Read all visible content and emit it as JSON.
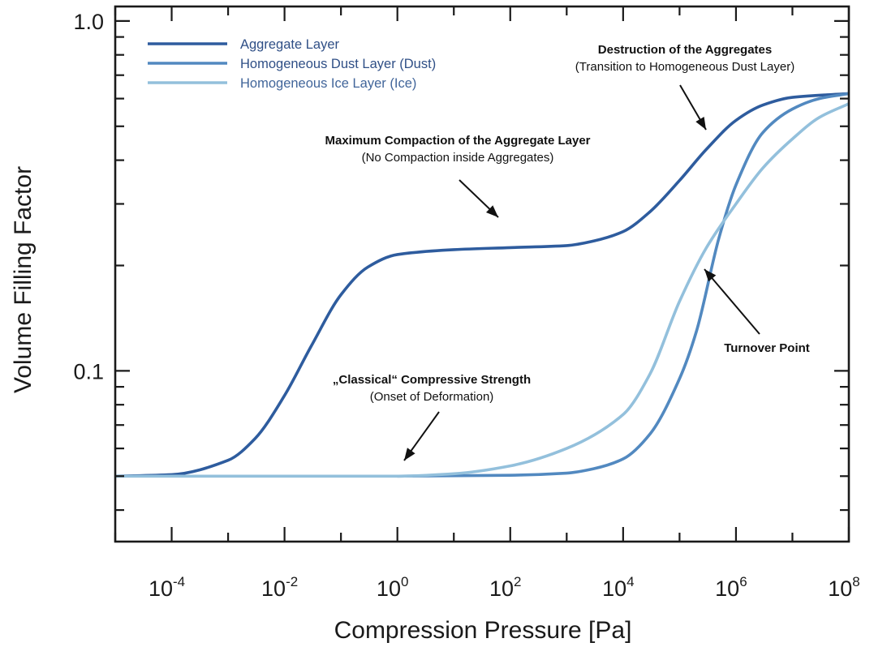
{
  "chart_data": {
    "type": "line",
    "xlabel": "Compression Pressure [Pa]",
    "ylabel": "Volume Filling Factor",
    "xscale": "log",
    "yscale": "log",
    "xlim": [
      1e-05,
      100000000.0
    ],
    "ylim": [
      0.0325,
      1.1
    ],
    "grid": false,
    "legend_position": "top-left",
    "x_tick_labels": [
      {
        "value": 0.0001,
        "base": "10",
        "exp": "-4"
      },
      {
        "value": 0.01,
        "base": "10",
        "exp": "-2"
      },
      {
        "value": 1.0,
        "base": "10",
        "exp": "0"
      },
      {
        "value": 100.0,
        "base": "10",
        "exp": "2"
      },
      {
        "value": 10000.0,
        "base": "10",
        "exp": "4"
      },
      {
        "value": 1000000.0,
        "base": "10",
        "exp": "6"
      },
      {
        "value": 100000000.0,
        "base": "10",
        "exp": "8"
      }
    ],
    "y_tick_labels": [
      {
        "value": 1.0,
        "label": "1.0"
      },
      {
        "value": 0.1,
        "label": "0.1"
      }
    ],
    "series": [
      {
        "name": "Aggregate Layer",
        "color": "#2e5c9e",
        "points": [
          [
            1e-05,
            0.05
          ],
          [
            0.0001,
            0.0505
          ],
          [
            0.001,
            0.0555
          ],
          [
            0.003,
            0.064
          ],
          [
            0.01,
            0.085
          ],
          [
            0.03,
            0.118
          ],
          [
            0.1,
            0.165
          ],
          [
            0.3,
            0.198
          ],
          [
            1.0,
            0.215
          ],
          [
            10.0,
            0.222
          ],
          [
            100.0,
            0.225
          ],
          [
            1000.0,
            0.228
          ],
          [
            3000.0,
            0.235
          ],
          [
            10000.0,
            0.25
          ],
          [
            30000.0,
            0.285
          ],
          [
            100000.0,
            0.35
          ],
          [
            300000.0,
            0.43
          ],
          [
            1000000.0,
            0.52
          ],
          [
            3000000.0,
            0.575
          ],
          [
            10000000.0,
            0.605
          ],
          [
            100000000.0,
            0.62
          ]
        ]
      },
      {
        "name": "Homogeneous Dust Layer (Dust)",
        "color": "#5289c0",
        "points": [
          [
            1.0,
            0.05
          ],
          [
            100.0,
            0.0503
          ],
          [
            1000.0,
            0.051
          ],
          [
            3000.0,
            0.0525
          ],
          [
            10000.0,
            0.056
          ],
          [
            30000.0,
            0.066
          ],
          [
            100000.0,
            0.095
          ],
          [
            200000.0,
            0.13
          ],
          [
            500000.0,
            0.24
          ],
          [
            1000000.0,
            0.34
          ],
          [
            3000000.0,
            0.48
          ],
          [
            10000000.0,
            0.56
          ],
          [
            30000000.0,
            0.6
          ],
          [
            100000000.0,
            0.62
          ]
        ]
      },
      {
        "name": "Homogeneous Ice Layer (Ice)",
        "color": "#93c0dc",
        "points": [
          [
            1e-05,
            0.05
          ],
          [
            1.0,
            0.05
          ],
          [
            10.0,
            0.0508
          ],
          [
            100.0,
            0.0535
          ],
          [
            1000.0,
            0.06
          ],
          [
            10000.0,
            0.075
          ],
          [
            30000.0,
            0.098
          ],
          [
            100000.0,
            0.158
          ],
          [
            300000.0,
            0.225
          ],
          [
            1000000.0,
            0.3
          ],
          [
            3000000.0,
            0.38
          ],
          [
            10000000.0,
            0.46
          ],
          [
            30000000.0,
            0.53
          ],
          [
            100000000.0,
            0.58
          ]
        ]
      }
    ],
    "annotations": [
      {
        "bold": "Destruction of the Aggregates",
        "normal": "(Transition to Homogeneous Dust Layer)"
      },
      {
        "bold": "Maximum Compaction of the Aggregate Layer",
        "normal": "(No Compaction inside Aggregates)"
      },
      {
        "bold": "Turnover Point",
        "normal": ""
      },
      {
        "bold": "„Classical“ Compressive Strength",
        "normal": "(Onset of Deformation)"
      }
    ]
  }
}
